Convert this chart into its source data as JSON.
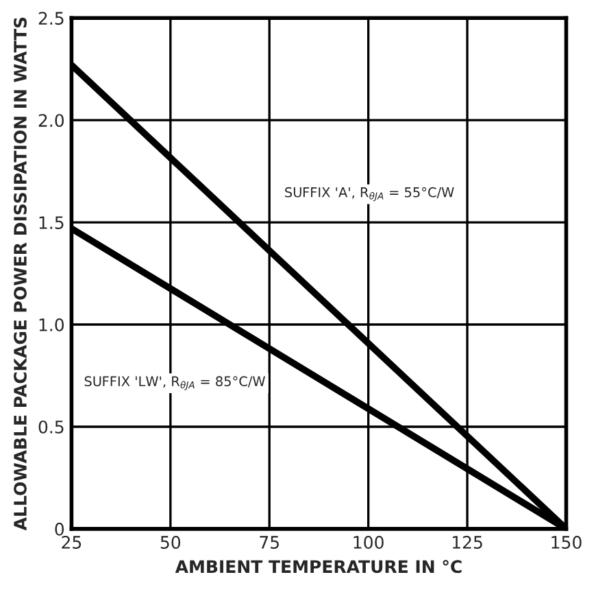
{
  "chart_data": {
    "type": "line",
    "xlabel": "AMBIENT TEMPERATURE IN °C",
    "ylabel": "ALLOWABLE PACKAGE POWER DISSIPATION IN WATTS",
    "x": [
      25,
      150
    ],
    "series": [
      {
        "color": "#000000",
        "values": [
          2.27,
          0
        ]
      },
      {
        "color": "#000000",
        "values": [
          1.47,
          0
        ]
      }
    ],
    "annotations": [
      "SUFFIX 'A', R$_{θJA}$ = 55°C/W",
      "SUFFIX 'LW', R$_{θJA}$ = 85°C/W"
    ],
    "xlim": [
      25,
      150
    ],
    "xticks": [
      25,
      50,
      75,
      100,
      125,
      150
    ],
    "ylim": [
      0,
      2.5
    ],
    "yticks": [
      0,
      0.5,
      {
        "value": 1,
        "label": "1.0"
      },
      1.5,
      {
        "value": 2,
        "label": "2.0"
      },
      2.5
    ],
    "grid": true,
    "legend": false,
    "marker": "none",
    "line_style": "solid"
  }
}
